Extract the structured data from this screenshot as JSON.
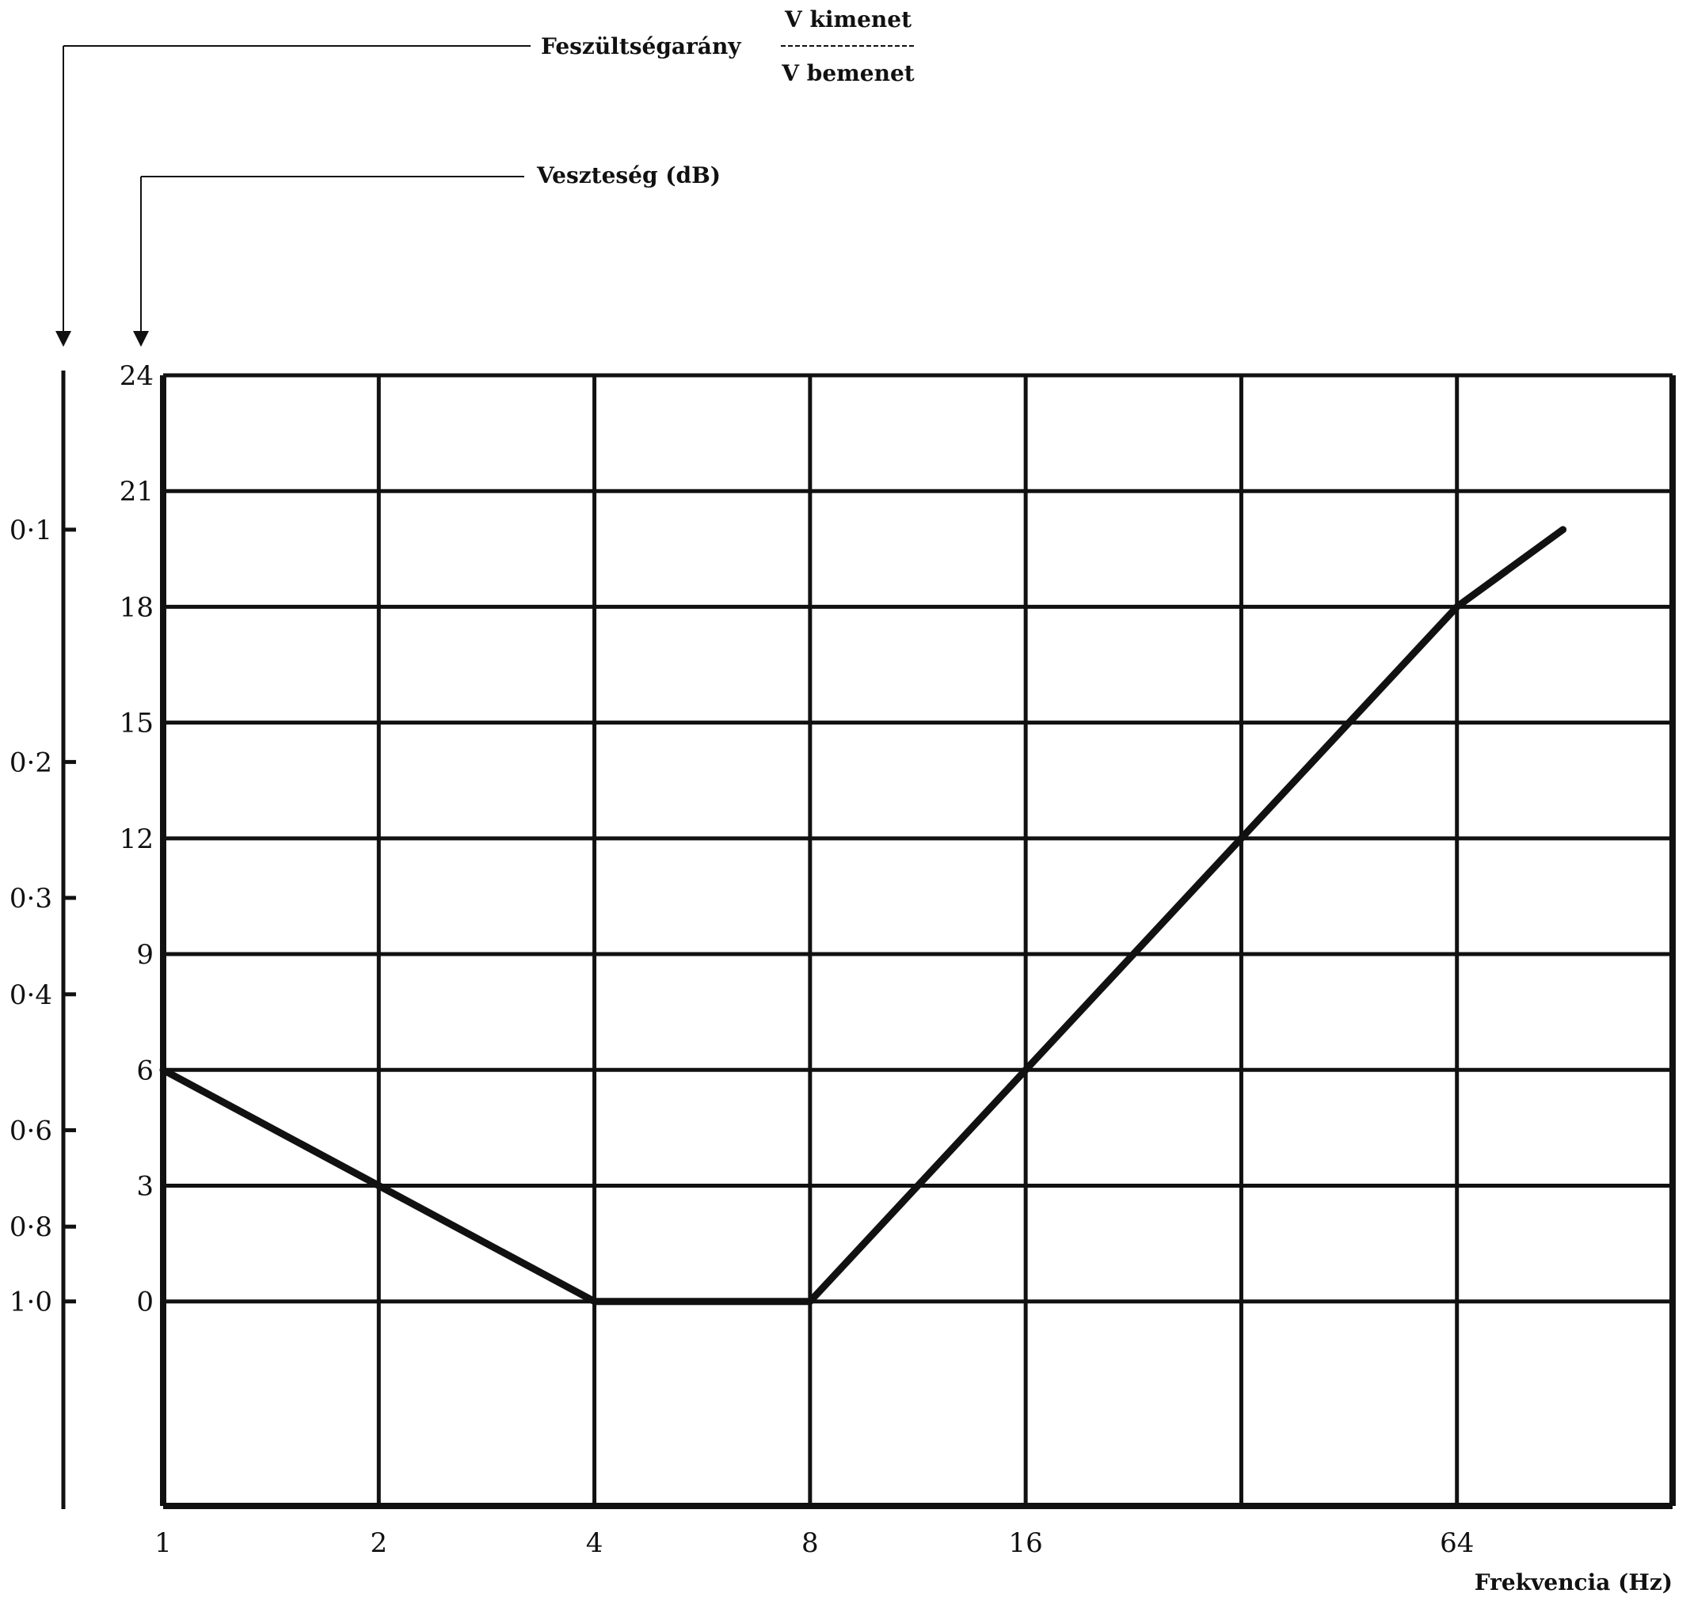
{
  "chart_data": {
    "type": "line",
    "x_axis": {
      "label": "Frekvencia (Hz)",
      "scale": "log2",
      "range": [
        1,
        128
      ],
      "ticks": [
        1,
        2,
        4,
        8,
        16,
        32,
        64
      ],
      "tick_labels": [
        "1",
        "2",
        "4",
        "8",
        "16",
        "",
        "64"
      ]
    },
    "y_axis": {
      "label": "Veszteség (dB)",
      "range": [
        -5.3,
        24
      ],
      "ticks": [
        0,
        3,
        6,
        9,
        12,
        15,
        18,
        21,
        24
      ],
      "tick_labels": [
        "0",
        "3",
        "6",
        "9",
        "12",
        "15",
        "18",
        "21",
        "24"
      ]
    },
    "y2_axis": {
      "label": "Feszültségarány",
      "fraction_numerator": "V kimenet",
      "fraction_denominator": "V bemenet",
      "ticks": [
        0.1,
        0.2,
        0.3,
        0.4,
        0.6,
        0.8,
        1.0
      ],
      "tick_labels": [
        "0·1",
        "0·2",
        "0·3",
        "0·4",
        "0·6",
        "0·8",
        "1·0"
      ]
    },
    "grid": true,
    "series": [
      {
        "x": [
          1,
          2,
          4,
          8,
          16,
          32,
          64,
          90
        ],
        "y": [
          6,
          3,
          0,
          0,
          6,
          12,
          18,
          20
        ]
      }
    ],
    "colors": {
      "line": "#111111",
      "background": "#ffffff"
    }
  }
}
